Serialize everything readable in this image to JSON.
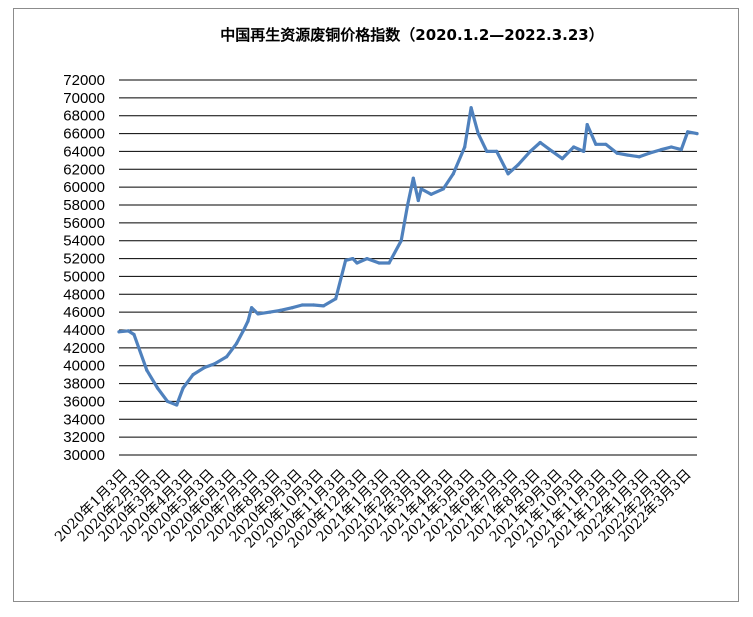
{
  "chart_data": {
    "type": "line",
    "title": "中国再生资源废铜价格指数（2020.1.2—2022.3.23）",
    "xlabel": "",
    "ylabel": "",
    "ylim": [
      30000,
      72000
    ],
    "ytick_step": 2000,
    "grid": true,
    "legend": "none",
    "line_color": "#4f81bd",
    "x_tick_labels": [
      "2020年1月3日",
      "2020年2月3日",
      "2020年3月3日",
      "2020年4月3日",
      "2020年5月3日",
      "2020年6月3日",
      "2020年7月3日",
      "2020年8月3日",
      "2020年9月3日",
      "2020年10月3日",
      "2020年11月3日",
      "2020年12月3日",
      "2021年1月3日",
      "2021年2月3日",
      "2021年3月3日",
      "2021年4月3日",
      "2021年5月3日",
      "2021年6月3日",
      "2021年7月3日",
      "2021年8月3日",
      "2021年9月3日",
      "2021年10月3日",
      "2021年11月3日",
      "2021年12月3日",
      "2022年1月3日",
      "2022年2月3日",
      "2022年3月3日"
    ],
    "series": [
      {
        "x": [
          "2020-01-02",
          "2020-01-15",
          "2020-01-23",
          "2020-02-10",
          "2020-02-25",
          "2020-03-10",
          "2020-03-23",
          "2020-04-01",
          "2020-04-15",
          "2020-05-01",
          "2020-05-15",
          "2020-06-01",
          "2020-06-15",
          "2020-06-25",
          "2020-07-01",
          "2020-07-06",
          "2020-07-15",
          "2020-08-01",
          "2020-08-15",
          "2020-09-01",
          "2020-09-15",
          "2020-10-01",
          "2020-10-15",
          "2020-11-01",
          "2020-11-15",
          "2020-11-25",
          "2020-12-01",
          "2020-12-15",
          "2021-01-01",
          "2021-01-15",
          "2021-02-01",
          "2021-02-10",
          "2021-02-18",
          "2021-02-25",
          "2021-03-01",
          "2021-03-15",
          "2021-04-01",
          "2021-04-15",
          "2021-05-01",
          "2021-05-10",
          "2021-05-20",
          "2021-06-01",
          "2021-06-15",
          "2021-07-01",
          "2021-07-15",
          "2021-08-01",
          "2021-08-15",
          "2021-09-01",
          "2021-09-15",
          "2021-10-01",
          "2021-10-15",
          "2021-10-20",
          "2021-11-01",
          "2021-11-15",
          "2021-12-01",
          "2021-12-15",
          "2022-01-01",
          "2022-01-15",
          "2022-02-01",
          "2022-02-15",
          "2022-03-01",
          "2022-03-10",
          "2022-03-23"
        ],
        "values": [
          43800,
          43900,
          43500,
          39500,
          37500,
          36000,
          35600,
          37500,
          39000,
          39800,
          40200,
          41000,
          42500,
          44000,
          45000,
          46500,
          45800,
          46000,
          46200,
          46500,
          46800,
          46800,
          46700,
          47500,
          51800,
          52000,
          51500,
          52000,
          51500,
          51500,
          54000,
          58000,
          61000,
          58500,
          59800,
          59200,
          59800,
          61500,
          64500,
          68900,
          66000,
          64000,
          64000,
          61500,
          62500,
          64000,
          65000,
          64000,
          63200,
          64500,
          64000,
          67000,
          64800,
          64800,
          63800,
          63600,
          63400,
          63800,
          64200,
          64500,
          64200,
          66200,
          66000
        ]
      }
    ]
  }
}
